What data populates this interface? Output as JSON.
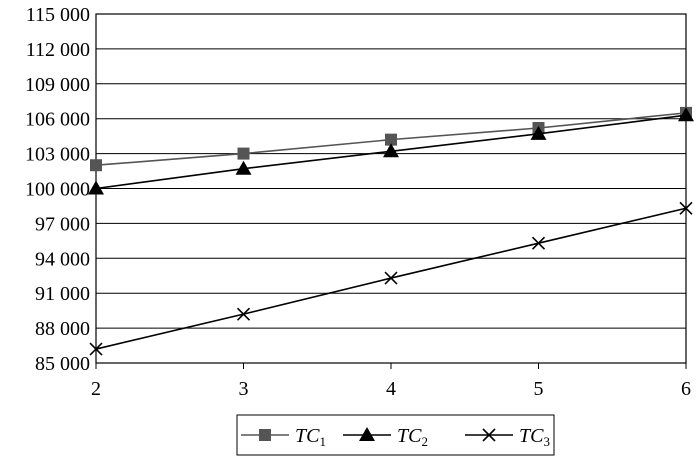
{
  "chart_data": {
    "type": "line",
    "x": [
      2,
      3,
      4,
      5,
      6
    ],
    "x_ticks": [
      "2",
      "3",
      "4",
      "5",
      "6"
    ],
    "ylim": [
      85000,
      115000
    ],
    "y_ticks": [
      "85 000",
      "88 000",
      "91 000",
      "94 000",
      "97 000",
      "100 000",
      "103 000",
      "106 000",
      "109 000",
      "112 000",
      "115 000"
    ],
    "y_tick_values": [
      85000,
      88000,
      91000,
      94000,
      97000,
      100000,
      103000,
      106000,
      109000,
      112000,
      115000
    ],
    "grid": "horizontal",
    "legend_position": "bottom",
    "series": [
      {
        "name": "TC",
        "subscript": "1",
        "marker": "square",
        "color": "#555555",
        "values": [
          102000,
          103000,
          104200,
          105200,
          106500
        ]
      },
      {
        "name": "TC",
        "subscript": "2",
        "marker": "triangle",
        "color": "#000000",
        "values": [
          100000,
          101700,
          103200,
          104700,
          106300
        ]
      },
      {
        "name": "TC",
        "subscript": "3",
        "marker": "cross",
        "color": "#000000",
        "values": [
          86200,
          89200,
          92300,
          95300,
          98300
        ]
      }
    ]
  }
}
